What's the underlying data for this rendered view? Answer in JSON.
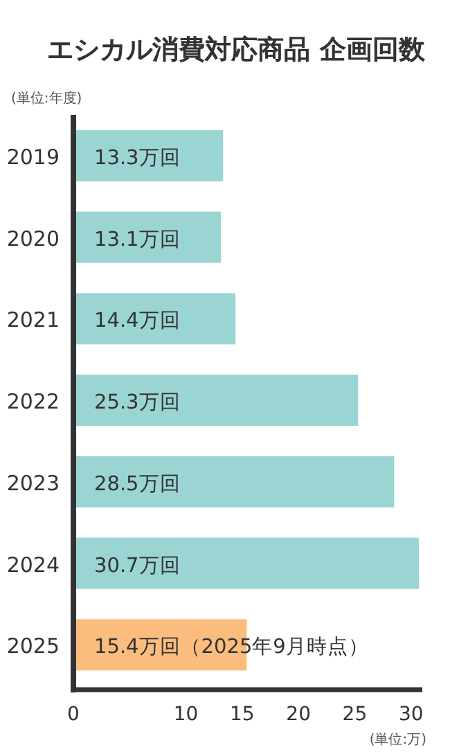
{
  "chart_data": {
    "type": "bar",
    "orientation": "horizontal",
    "title": "エシカル消費対応商品 企画回数",
    "categories": [
      "2019",
      "2020",
      "2021",
      "2022",
      "2023",
      "2024",
      "2025"
    ],
    "values": [
      13.3,
      13.1,
      14.4,
      25.3,
      28.5,
      30.7,
      15.4
    ],
    "colors": [
      "#9ad5d3",
      "#9ad5d3",
      "#9ad5d3",
      "#9ad5d3",
      "#9ad5d3",
      "#9ad5d3",
      "#fbbd7e"
    ],
    "value_labels": [
      "13.3万回",
      "13.1万回",
      "14.4万回",
      "25.3万回",
      "28.5万回",
      "30.7万回",
      "15.4万回（2025年9月時点）"
    ],
    "xlim": [
      0,
      31
    ],
    "xticks": [
      0,
      10,
      15,
      20,
      25,
      30
    ],
    "annotations": [
      "(単位:年度)",
      "(単位:万)"
    ],
    "grid": false
  }
}
